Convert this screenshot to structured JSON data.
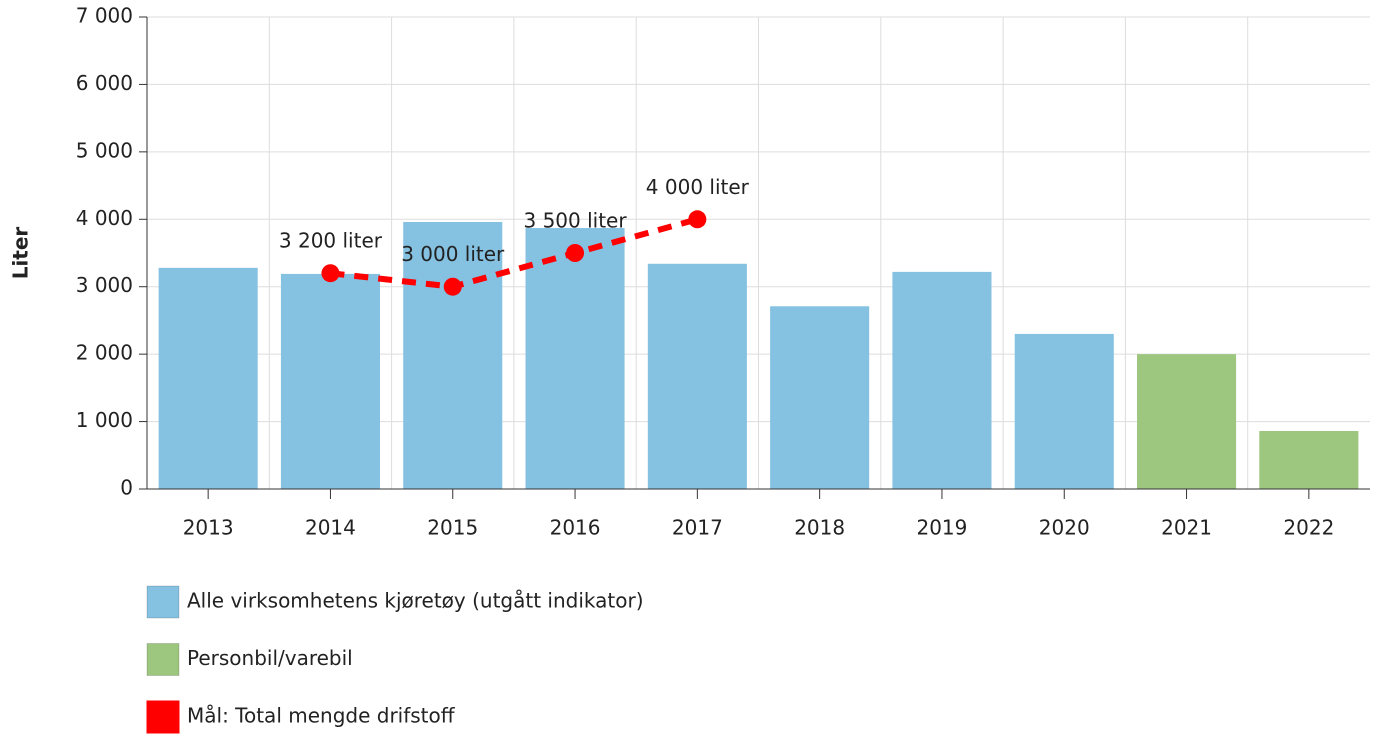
{
  "chart_data": {
    "type": "bar",
    "y_label": "Liter",
    "categories": [
      "2013",
      "2014",
      "2015",
      "2016",
      "2017",
      "2018",
      "2019",
      "2020",
      "2021",
      "2022"
    ],
    "series": [
      {
        "name": "Alle virksomhetens kjøretøy (utgått indikator)",
        "type": "bar",
        "color": "#85c1e1",
        "values": [
          3280,
          3190,
          3960,
          3870,
          3340,
          2710,
          3220,
          2300,
          null,
          null
        ]
      },
      {
        "name": "Personbil/varebil",
        "type": "bar",
        "color": "#9dc67f",
        "values": [
          null,
          null,
          null,
          null,
          null,
          null,
          null,
          null,
          2000,
          860
        ]
      },
      {
        "name": "Mål: Total mengde drifstoff",
        "type": "line",
        "color": "#ff0000",
        "values": [
          null,
          3200,
          3000,
          3500,
          4000,
          null,
          null,
          null,
          null,
          null
        ],
        "value_labels": [
          null,
          "3 200 liter",
          "3 000 liter",
          "3 500 liter",
          "4 000 liter",
          null,
          null,
          null,
          null,
          null
        ]
      }
    ],
    "ylim": [
      0,
      7000
    ],
    "yticks": [
      0,
      {
        "value": 1000,
        "label": "1 000"
      },
      {
        "value": 2000,
        "label": "2 000"
      },
      {
        "value": 3000,
        "label": "3 000"
      },
      {
        "value": 4000,
        "label": "4 000"
      },
      {
        "value": 5000,
        "label": "5 000"
      },
      {
        "value": 6000,
        "label": "6 000"
      },
      {
        "value": 7000,
        "label": "7 000"
      }
    ],
    "grid": true
  }
}
